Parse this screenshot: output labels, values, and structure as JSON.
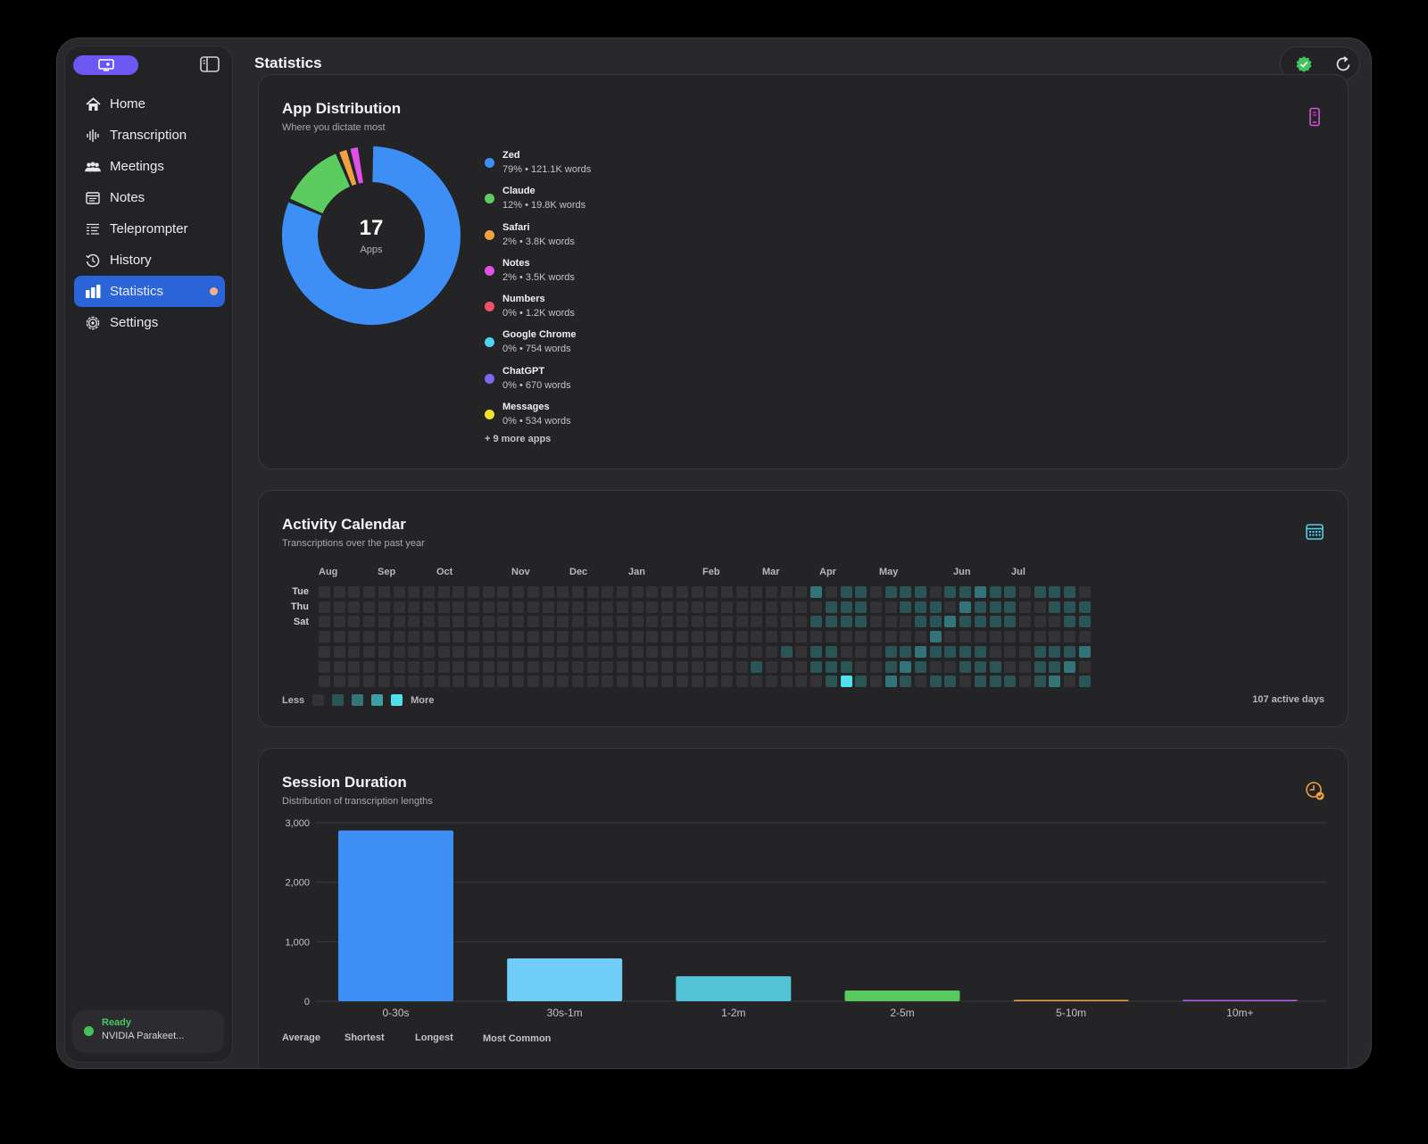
{
  "window": {
    "title": "Statistics"
  },
  "sidebar": {
    "items": [
      {
        "label": "Home",
        "icon": "house-icon"
      },
      {
        "label": "Transcription",
        "icon": "waveform-icon"
      },
      {
        "label": "Meetings",
        "icon": "people-icon"
      },
      {
        "label": "Notes",
        "icon": "note-icon"
      },
      {
        "label": "Teleprompter",
        "icon": "teleprompter-icon"
      },
      {
        "label": "History",
        "icon": "history-icon"
      },
      {
        "label": "Statistics",
        "icon": "bar-chart-icon",
        "active": true
      },
      {
        "label": "Settings",
        "icon": "gear-icon"
      }
    ],
    "status": {
      "state": "Ready",
      "model": "NVIDIA Parakeet..."
    }
  },
  "app_distribution": {
    "title": "App Distribution",
    "subtitle": "Where you dictate most",
    "total_count": "17",
    "total_label": "Apps",
    "apps": [
      {
        "name": "Zed",
        "detail": "79% • 121.1K words",
        "share": 79,
        "color": "#3d8ff5"
      },
      {
        "name": "Claude",
        "detail": "12% • 19.8K words",
        "share": 12,
        "color": "#5ccc61"
      },
      {
        "name": "Safari",
        "detail": "2% • 3.8K words",
        "share": 2,
        "color": "#f2a140"
      },
      {
        "name": "Notes",
        "detail": "2% • 3.5K words",
        "share": 2,
        "color": "#e050e8"
      },
      {
        "name": "Numbers",
        "detail": "0% • 1.2K words",
        "share": 0.8,
        "color": "#f25068"
      },
      {
        "name": "Google Chrome",
        "detail": "0% • 754 words",
        "share": 0.5,
        "color": "#4dd4f0"
      },
      {
        "name": "ChatGPT",
        "detail": "0% • 670 words",
        "share": 0.4,
        "color": "#7a68f0"
      },
      {
        "name": "Messages",
        "detail": "0% • 534 words",
        "share": 0.3,
        "color": "#f0e030"
      }
    ],
    "more": "+ 9 more apps"
  },
  "activity_calendar": {
    "title": "Activity Calendar",
    "subtitle": "Transcriptions over the past year",
    "months": [
      "Aug",
      "Sep",
      "Oct",
      "Nov",
      "Dec",
      "Jan",
      "Feb",
      "Mar",
      "Apr",
      "May",
      "Jun",
      "Jul"
    ],
    "days": [
      "Tue",
      "Thu",
      "Sat"
    ],
    "legend_less": "Less",
    "legend_more": "More",
    "legend_colors": [
      "#333336",
      "#2b5456",
      "#33747a",
      "#3f9ea4",
      "#4fe0ee"
    ],
    "active_days": "107 active days"
  },
  "session_duration": {
    "title": "Session Duration",
    "subtitle": "Distribution of transcription lengths",
    "stats_labels": [
      "Average",
      "Shortest",
      "Longest",
      "Most Common"
    ]
  },
  "chart_data": {
    "type": "bar",
    "title": "Session Duration",
    "subtitle": "Distribution of transcription lengths",
    "categories": [
      "0-30s",
      "30s-1m",
      "1-2m",
      "2-5m",
      "5-10m",
      "10m+"
    ],
    "values": [
      2870,
      720,
      420,
      180,
      15,
      10
    ],
    "colors": [
      "#3d8ff5",
      "#6fcdf7",
      "#52c2d4",
      "#58c95c",
      "#f2a140",
      "#b060e8"
    ],
    "ylim": [
      0,
      3000
    ],
    "yticks": [
      "3,000",
      "2,000",
      "1,000",
      "0"
    ],
    "grid": true
  }
}
